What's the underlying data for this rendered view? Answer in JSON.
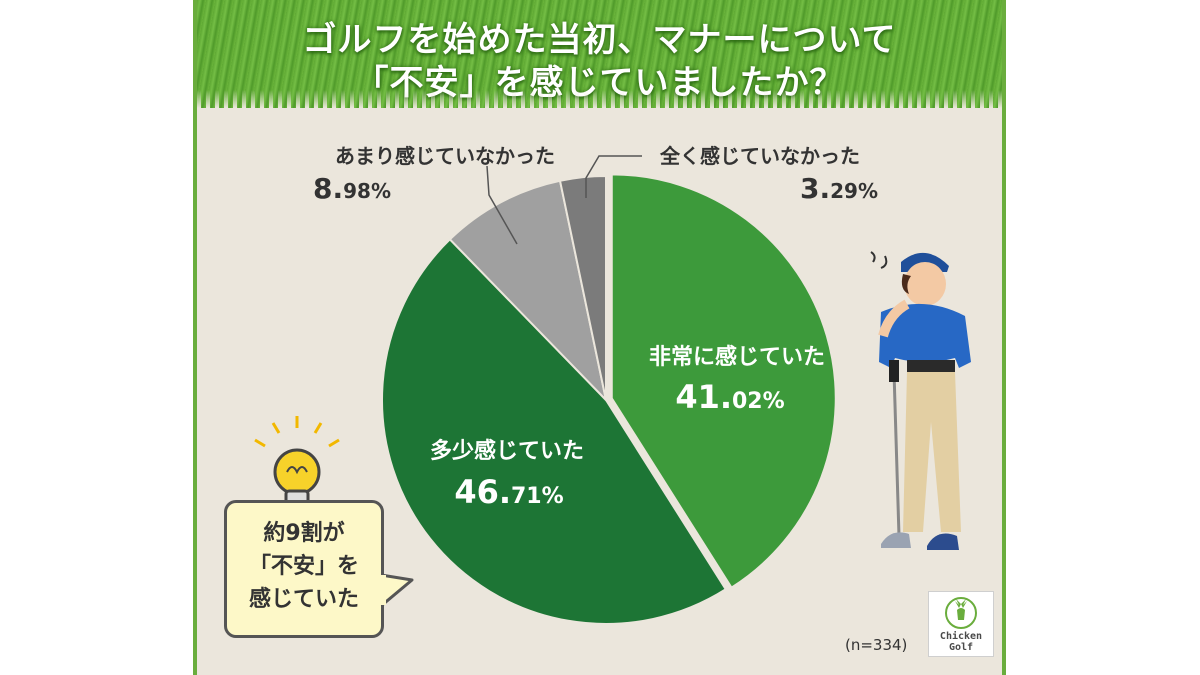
{
  "title_lines": [
    "ゴルフを始めた当初、マナーについて",
    "「不安」を感じていましたか？"
  ],
  "chart_data": {
    "type": "pie",
    "title": "ゴルフを始めた当初、マナーについて「不安」を感じていましたか？",
    "slices": [
      {
        "label": "非常に感じていた",
        "value_major": "41.",
        "value_minor": "02%",
        "value": 41.02,
        "color": "#3d9a3b"
      },
      {
        "label": "多少感じていた",
        "value_major": "46.",
        "value_minor": "71%",
        "value": 46.71,
        "color": "#1d7535"
      },
      {
        "label": "あまり感じていなかった",
        "value_major": "8.",
        "value_minor": "98%",
        "value": 8.98,
        "color": "#a0a0a0"
      },
      {
        "label": "全く感じていなかった",
        "value_major": "3.",
        "value_minor": "29%",
        "value": 3.29,
        "color": "#7b7b7b"
      }
    ],
    "start_angle_deg": 0,
    "direction": "clockwise"
  },
  "callout": {
    "lines": [
      "約9割が",
      "「不安」を",
      "感じていた"
    ]
  },
  "sample_size": "(n=334)",
  "logo": {
    "line1": "Chicken",
    "line2": "Golf"
  }
}
